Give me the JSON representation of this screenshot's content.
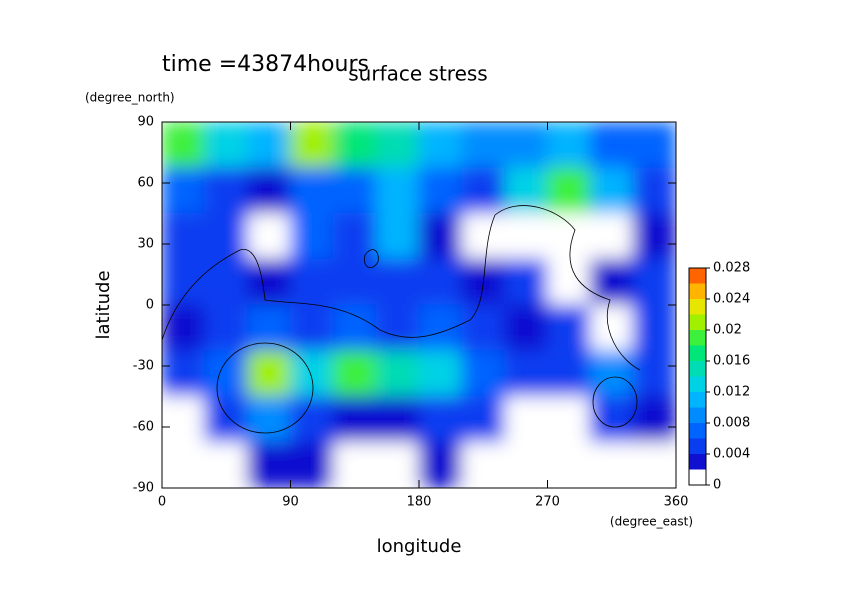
{
  "chart_data": {
    "type": "contour",
    "title": "surface stress",
    "subtitle": "time =43874hours",
    "x_label": "longitude",
    "x_unit": "(degree_east)",
    "y_label": "latitude",
    "y_unit": "(degree_north)",
    "x": [
      15,
      45,
      75,
      105,
      135,
      165,
      195,
      225,
      255,
      285,
      315,
      345
    ],
    "y": [
      78.75,
      56.25,
      33.75,
      11.25,
      -11.25,
      -33.75,
      -56.25,
      -78.75
    ],
    "z": [
      [
        0.018,
        0.012,
        0.01,
        0.02,
        0.016,
        0.014,
        0.01,
        0.008,
        0.008,
        0.01,
        0.006,
        0.006
      ],
      [
        0.006,
        0.004,
        0.002,
        0.006,
        0.006,
        0.01,
        0.006,
        0.004,
        0.012,
        0.018,
        0.01,
        0.004
      ],
      [
        0.004,
        0.004,
        0,
        0.006,
        0.004,
        0.01,
        0.002,
        0,
        0,
        0,
        0,
        0.002
      ],
      [
        0.004,
        0.004,
        0.002,
        0.004,
        0.004,
        0.004,
        0.004,
        0.002,
        0.004,
        0,
        0.002,
        0.004
      ],
      [
        0.002,
        0.004,
        0.006,
        0.004,
        0.006,
        0.004,
        0.006,
        0.004,
        0.002,
        0.004,
        0,
        0.004
      ],
      [
        0.004,
        0.006,
        0.02,
        0.012,
        0.018,
        0.014,
        0.012,
        0.006,
        0.004,
        0.004,
        0.008,
        0.004
      ],
      [
        0,
        0.004,
        0.008,
        0.004,
        0.002,
        0.002,
        0.004,
        0.004,
        0,
        0,
        0.004,
        0.002
      ],
      [
        0,
        0,
        0.002,
        0.002,
        0,
        0,
        0.002,
        0,
        0,
        0,
        0,
        0
      ]
    ],
    "xlim": [
      0,
      360
    ],
    "ylim": [
      -90,
      90
    ],
    "xticks": [
      0,
      90,
      180,
      270,
      360
    ],
    "yticks": [
      90,
      60,
      30,
      0,
      -30,
      -60,
      -90
    ],
    "levels": [
      0,
      0.002,
      0.004,
      0.006,
      0.008,
      0.01,
      0.012,
      0.014,
      0.016,
      0.018,
      0.02,
      0.022,
      0.024,
      0.026,
      0.028
    ],
    "colors": [
      "#ffffff",
      "#1010d0",
      "#0a3cf0",
      "#0064ff",
      "#008cff",
      "#00b4ff",
      "#00d2e6",
      "#00dcb4",
      "#00e678",
      "#3cf03c",
      "#a0f000",
      "#e6e600",
      "#ffb400",
      "#ff6400"
    ],
    "colorbar_ticks": [
      0,
      0.004,
      0.008,
      0.012,
      0.016,
      0.02,
      0.024,
      0.028
    ]
  }
}
